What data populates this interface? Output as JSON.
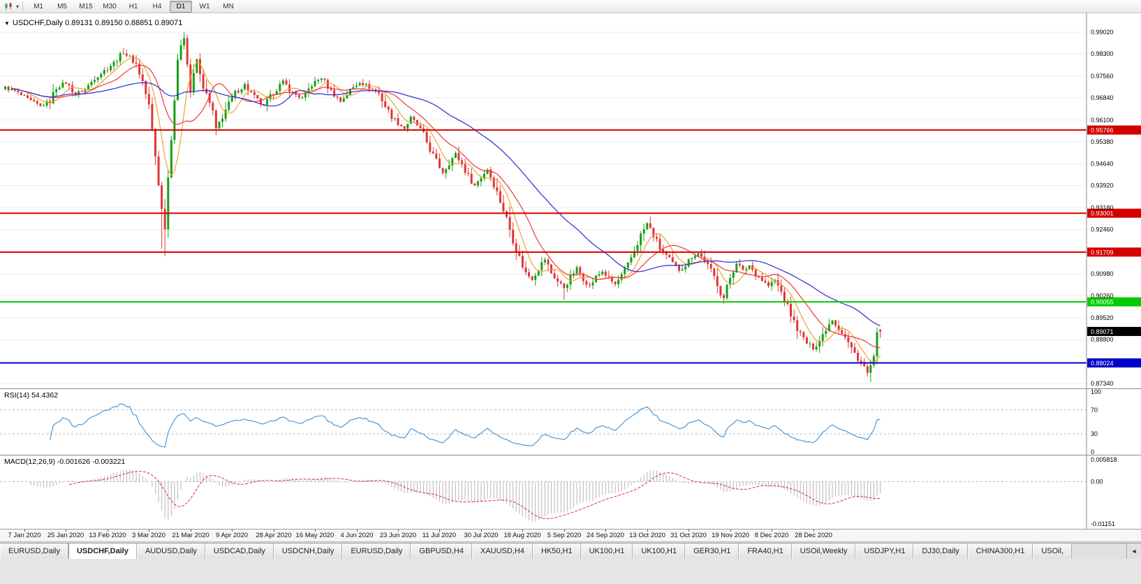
{
  "icons": {
    "collapse_triangle": "▼",
    "dropdown_caret": "▾",
    "tab_scroll_left": "◄",
    "chart_type": "candlestick-chart-icon"
  },
  "toolbar": {
    "timeframes": [
      "M1",
      "M5",
      "M15",
      "M30",
      "H1",
      "H4",
      "D1",
      "W1",
      "MN"
    ],
    "active_timeframe": "D1"
  },
  "chart_header": {
    "title": "USDCHF,Daily 0.89131 0.89150 0.88851 0.89071"
  },
  "tabs": {
    "items": [
      "EURUSD,Daily",
      "USDCHF,Daily",
      "AUDUSD,Daily",
      "USDCAD,Daily",
      "USDCNH,Daily",
      "EURUSD,Daily",
      "GBPUSD,H4",
      "XAUUSD,H4",
      "HK50,H1",
      "UK100,H1",
      "UK100,H1",
      "GER30,H1",
      "FRA40,H1",
      "USOil,Weekly",
      "USDJPY,H1",
      "DJ30,Daily",
      "CHINA300,H1",
      "USOil,"
    ],
    "active_index": 1
  },
  "chart_data": {
    "type": "candlestick",
    "symbol": "USDCHF",
    "timeframe": "Daily",
    "ohlc": {
      "open": 0.89131,
      "high": 0.8915,
      "low": 0.88851,
      "close": 0.89071
    },
    "price_scale": {
      "min": 0.8734,
      "max": 0.9902,
      "ticks": [
        "0.99020",
        "0.98300",
        "0.97560",
        "0.96840",
        "0.96100",
        "0.95380",
        "0.94640",
        "0.93920",
        "0.93180",
        "0.92460",
        "0.90980",
        "0.90260",
        "0.89520",
        "0.88800",
        "0.87340"
      ]
    },
    "hlines": [
      {
        "price": 0.95766,
        "label": "0.95766",
        "color": "#d40000",
        "width": 2
      },
      {
        "price": 0.93001,
        "label": "0.93001",
        "color": "#d40000",
        "width": 2
      },
      {
        "price": 0.91709,
        "label": "0.91709",
        "color": "#d40000",
        "width": 2
      },
      {
        "price": 0.90055,
        "label": "0.90055",
        "color": "#00cd00",
        "width": 2
      },
      {
        "price": 0.88024,
        "label": "0.88024",
        "color": "#0000c8",
        "width": 2
      }
    ],
    "current_price": {
      "value": 0.89071,
      "label": "0.89071",
      "bg": "#000000"
    },
    "dates": [
      "7 Jan 2020",
      "25 Jan 2020",
      "13 Feb 2020",
      "3 Mar 2020",
      "21 Mar 2020",
      "9 Apr 2020",
      "28 Apr 2020",
      "16 May 2020",
      "4 Jun 2020",
      "23 Jun 2020",
      "11 Jul 2020",
      "30 Jul 2020",
      "18 Aug 2020",
      "5 Sep 2020",
      "24 Sep 2020",
      "13 Oct 2020",
      "31 Oct 2020",
      "19 Nov 2020",
      "8 Dec 2020",
      "28 Dec 2020"
    ],
    "date_day_indices": [
      3,
      16,
      29,
      42,
      55,
      68,
      81,
      94,
      107,
      120,
      133,
      146,
      159,
      172,
      185,
      198,
      211,
      224,
      237,
      250
    ],
    "day_range": [
      -3,
      271
    ],
    "close_anchors": [
      [
        -3,
        0.9718
      ],
      [
        0,
        0.9706
      ],
      [
        4,
        0.9678
      ],
      [
        8,
        0.9656
      ],
      [
        11,
        0.9672
      ],
      [
        13,
        0.9718
      ],
      [
        16,
        0.9734
      ],
      [
        19,
        0.9696
      ],
      [
        22,
        0.9712
      ],
      [
        25,
        0.975
      ],
      [
        28,
        0.9774
      ],
      [
        31,
        0.98
      ],
      [
        34,
        0.9835
      ],
      [
        36,
        0.9818
      ],
      [
        38,
        0.9796
      ],
      [
        40,
        0.9738
      ],
      [
        42,
        0.9656
      ],
      [
        43,
        0.9576
      ],
      [
        44,
        0.949
      ],
      [
        45,
        0.94
      ],
      [
        46,
        0.9312
      ],
      [
        47,
        0.9258
      ],
      [
        48,
        0.942
      ],
      [
        49,
        0.9556
      ],
      [
        50,
        0.968
      ],
      [
        51,
        0.9798
      ],
      [
        52,
        0.9866
      ],
      [
        53,
        0.9893
      ],
      [
        54,
        0.9796
      ],
      [
        55,
        0.9706
      ],
      [
        56,
        0.9756
      ],
      [
        57,
        0.9812
      ],
      [
        58,
        0.9756
      ],
      [
        60,
        0.969
      ],
      [
        62,
        0.9636
      ],
      [
        63,
        0.9574
      ],
      [
        64,
        0.96
      ],
      [
        66,
        0.9644
      ],
      [
        69,
        0.97
      ],
      [
        72,
        0.9727
      ],
      [
        75,
        0.9686
      ],
      [
        78,
        0.9656
      ],
      [
        81,
        0.9702
      ],
      [
        84,
        0.9737
      ],
      [
        87,
        0.97
      ],
      [
        90,
        0.9682
      ],
      [
        93,
        0.9727
      ],
      [
        96,
        0.9751
      ],
      [
        99,
        0.9706
      ],
      [
        102,
        0.9672
      ],
      [
        105,
        0.971
      ],
      [
        108,
        0.9737
      ],
      [
        111,
        0.9718
      ],
      [
        114,
        0.9698
      ],
      [
        116,
        0.9656
      ],
      [
        118,
        0.9622
      ],
      [
        120,
        0.96
      ],
      [
        122,
        0.9582
      ],
      [
        124,
        0.9617
      ],
      [
        126,
        0.9592
      ],
      [
        128,
        0.956
      ],
      [
        130,
        0.9512
      ],
      [
        132,
        0.9473
      ],
      [
        134,
        0.9436
      ],
      [
        136,
        0.9468
      ],
      [
        138,
        0.9497
      ],
      [
        140,
        0.9462
      ],
      [
        142,
        0.9423
      ],
      [
        144,
        0.9392
      ],
      [
        146,
        0.942
      ],
      [
        148,
        0.9447
      ],
      [
        150,
        0.9398
      ],
      [
        152,
        0.934
      ],
      [
        154,
        0.9282
      ],
      [
        156,
        0.9213
      ],
      [
        158,
        0.9152
      ],
      [
        160,
        0.9101
      ],
      [
        162,
        0.9083
      ],
      [
        164,
        0.9118
      ],
      [
        166,
        0.9147
      ],
      [
        168,
        0.9102
      ],
      [
        170,
        0.9073
      ],
      [
        172,
        0.9053
      ],
      [
        174,
        0.9088
      ],
      [
        176,
        0.9117
      ],
      [
        178,
        0.9083
      ],
      [
        180,
        0.9058
      ],
      [
        182,
        0.9088
      ],
      [
        184,
        0.9107
      ],
      [
        186,
        0.9083
      ],
      [
        188,
        0.9063
      ],
      [
        190,
        0.9092
      ],
      [
        192,
        0.9128
      ],
      [
        194,
        0.9177
      ],
      [
        196,
        0.9227
      ],
      [
        198,
        0.9266
      ],
      [
        200,
        0.9227
      ],
      [
        202,
        0.9183
      ],
      [
        204,
        0.9158
      ],
      [
        206,
        0.9133
      ],
      [
        208,
        0.9112
      ],
      [
        210,
        0.9128
      ],
      [
        212,
        0.9157
      ],
      [
        214,
        0.9167
      ],
      [
        216,
        0.9142
      ],
      [
        218,
        0.9108
      ],
      [
        220,
        0.9068
      ],
      [
        221,
        0.9038
      ],
      [
        222,
        0.9018
      ],
      [
        224,
        0.9087
      ],
      [
        226,
        0.9137
      ],
      [
        228,
        0.9108
      ],
      [
        230,
        0.9127
      ],
      [
        232,
        0.9098
      ],
      [
        234,
        0.9078
      ],
      [
        236,
        0.9058
      ],
      [
        238,
        0.9077
      ],
      [
        240,
        0.9038
      ],
      [
        242,
        0.8988
      ],
      [
        244,
        0.8938
      ],
      [
        246,
        0.8898
      ],
      [
        248,
        0.8868
      ],
      [
        250,
        0.8852
      ],
      [
        252,
        0.8877
      ],
      [
        254,
        0.8917
      ],
      [
        256,
        0.8947
      ],
      [
        258,
        0.8917
      ],
      [
        260,
        0.8888
      ],
      [
        262,
        0.885
      ],
      [
        264,
        0.8818
      ],
      [
        266,
        0.8788
      ],
      [
        267,
        0.8768
      ],
      [
        268,
        0.8795
      ],
      [
        269,
        0.8825
      ],
      [
        270,
        0.8905
      ],
      [
        271,
        0.89071
      ]
    ],
    "wick_overrides": [
      {
        "day": 34,
        "high": 0.9849
      },
      {
        "day": 46,
        "low": 0.9182
      },
      {
        "day": 47,
        "low": 0.9158
      },
      {
        "day": 53,
        "high": 0.9902
      },
      {
        "day": 172,
        "low": 0.9012
      },
      {
        "day": 222,
        "low": 0.8998
      },
      {
        "day": 267,
        "low": 0.8757
      }
    ],
    "last_bar": {
      "o": 0.89131,
      "h": 0.8915,
      "l": 0.88851,
      "c": 0.89071
    },
    "candle_colors": {
      "up": "#16a016",
      "down": "#e03636"
    },
    "mas": [
      {
        "period": 7,
        "color": "#f0a030"
      },
      {
        "period": 15,
        "color": "#f03535"
      },
      {
        "period": 40,
        "color": "#2a2ad4"
      }
    ],
    "rsi": {
      "label": "RSI(14) 54.4362",
      "period": 14,
      "value": 54.4362,
      "color": "#3f8fd2",
      "scale_labels": [
        "100",
        "70",
        "30",
        "0"
      ],
      "levels": [
        70,
        30
      ]
    },
    "macd": {
      "label": "MACD(12,26,9) -0.001626 -0.003221",
      "fast": 12,
      "slow": 26,
      "signal_period": 9,
      "values": [
        -0.001626,
        -0.003221
      ],
      "hist_color": "#b5b5b5",
      "signal_color": "#e03030",
      "scale_labels": [
        "0.005818",
        "0.00",
        "-0.01151"
      ],
      "range": [
        -0.01151,
        0.005818
      ]
    }
  }
}
